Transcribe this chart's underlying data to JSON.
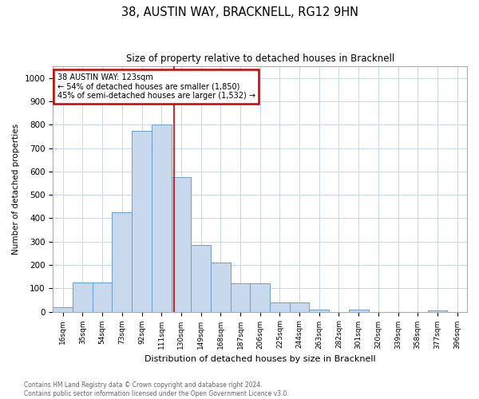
{
  "title": "38, AUSTIN WAY, BRACKNELL, RG12 9HN",
  "subtitle": "Size of property relative to detached houses in Bracknell",
  "xlabel": "Distribution of detached houses by size in Bracknell",
  "ylabel": "Number of detached properties",
  "bin_labels": [
    "16sqm",
    "35sqm",
    "54sqm",
    "73sqm",
    "92sqm",
    "111sqm",
    "130sqm",
    "149sqm",
    "168sqm",
    "187sqm",
    "206sqm",
    "225sqm",
    "244sqm",
    "263sqm",
    "282sqm",
    "301sqm",
    "320sqm",
    "339sqm",
    "358sqm",
    "377sqm",
    "396sqm"
  ],
  "bar_heights": [
    20,
    125,
    125,
    425,
    775,
    800,
    575,
    285,
    210,
    120,
    120,
    40,
    40,
    10,
    0,
    10,
    0,
    0,
    0,
    5,
    0
  ],
  "bar_color": "#c8d9ee",
  "bar_edge_color": "#6b9fcf",
  "grid_color": "#c8d8ea",
  "vline_color": "#cc0000",
  "annotation_title": "38 AUSTIN WAY: 123sqm",
  "annotation_line1": "← 54% of detached houses are smaller (1,850)",
  "annotation_line2": "45% of semi-detached houses are larger (1,532) →",
  "annotation_box_color": "#cc0000",
  "ylim": [
    0,
    1050
  ],
  "yticks": [
    0,
    100,
    200,
    300,
    400,
    500,
    600,
    700,
    800,
    900,
    1000
  ],
  "footer_line1": "Contains HM Land Registry data © Crown copyright and database right 2024.",
  "footer_line2": "Contains public sector information licensed under the Open Government Licence v3.0.",
  "background_color": "#ffffff",
  "fig_width": 6.0,
  "fig_height": 5.0,
  "dpi": 100
}
